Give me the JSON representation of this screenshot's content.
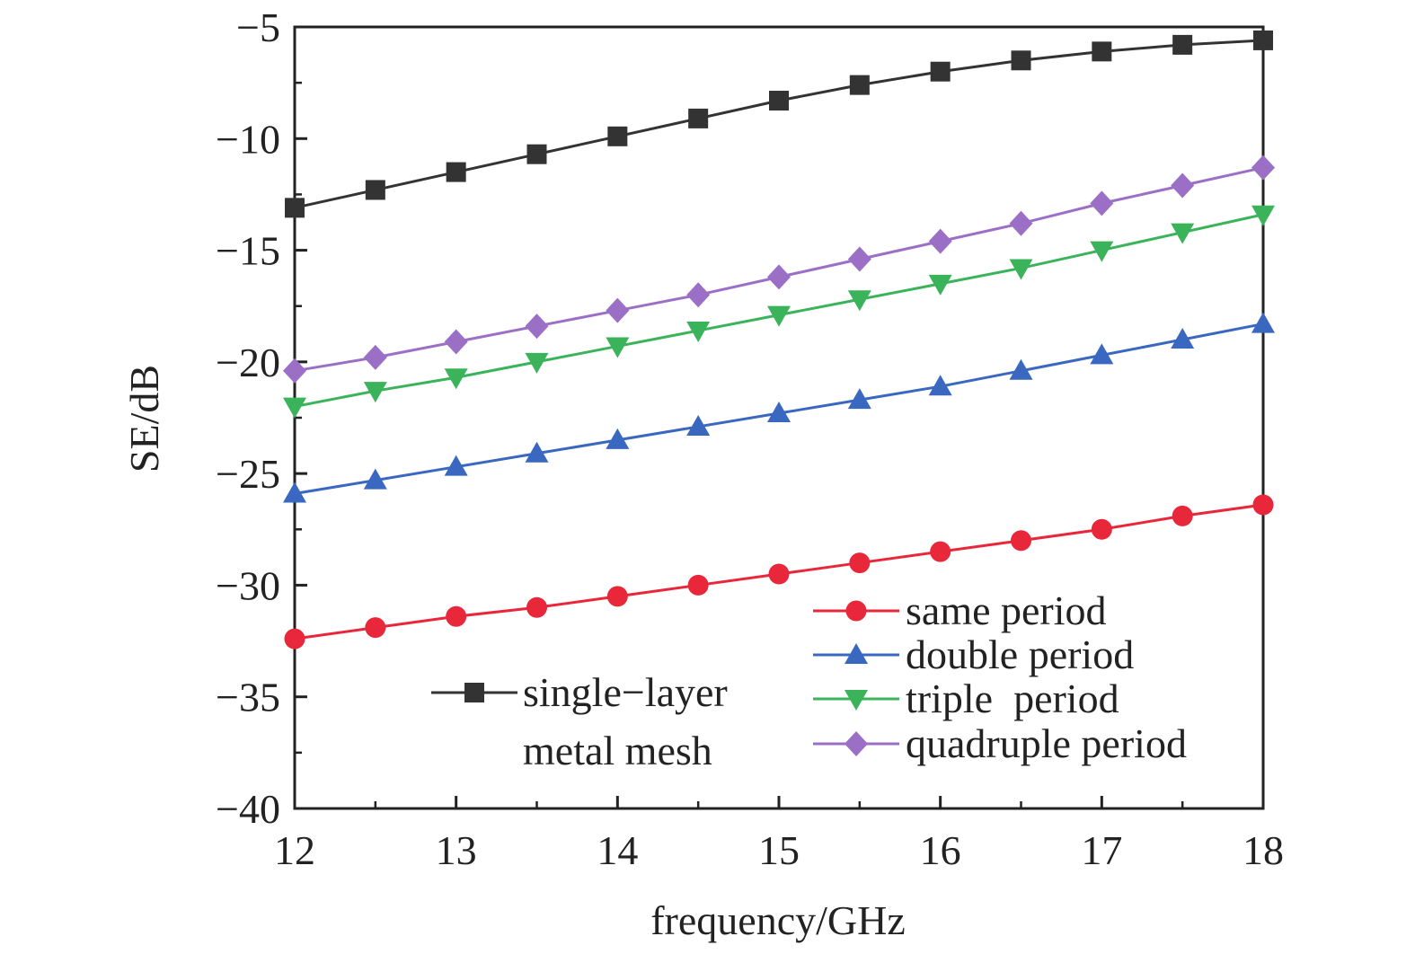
{
  "chart_data": {
    "type": "line",
    "xlabel": "frequency/GHz",
    "ylabel": "SE/dB",
    "xlim": [
      12,
      18
    ],
    "ylim": [
      -40,
      -5
    ],
    "x_ticks": [
      "12",
      "13",
      "14",
      "15",
      "16",
      "17",
      "18"
    ],
    "y_ticks": [
      "−5",
      "−10",
      "−15",
      "−20",
      "−25",
      "−30",
      "−35",
      "−40"
    ],
    "x_tick_values": [
      12,
      13,
      14,
      15,
      16,
      17,
      18
    ],
    "y_tick_values": [
      -5,
      -10,
      -15,
      -20,
      -25,
      -30,
      -35,
      -40
    ],
    "x": [
      12,
      12.5,
      13,
      13.5,
      14,
      14.5,
      15,
      15.5,
      16,
      16.5,
      17,
      17.5,
      18
    ],
    "series": [
      {
        "name": "single−layer metal mesh",
        "legend_lines": [
          "single−layer",
          "metal mesh"
        ],
        "color": "#333333",
        "marker": "square",
        "values": [
          -13.1,
          -12.3,
          -11.5,
          -10.7,
          -9.9,
          -9.1,
          -8.3,
          -7.6,
          -7.0,
          -6.5,
          -6.1,
          -5.8,
          -5.6
        ]
      },
      {
        "name": "same period",
        "color": "#e8273a",
        "marker": "circle",
        "values": [
          -32.4,
          -31.9,
          -31.4,
          -31.0,
          -30.5,
          -30.0,
          -29.5,
          -29.0,
          -28.5,
          -28.0,
          -27.5,
          -26.9,
          -26.4
        ]
      },
      {
        "name": "double period",
        "color": "#3a68c1",
        "marker": "triangle-up",
        "values": [
          -25.9,
          -25.3,
          -24.7,
          -24.1,
          -23.5,
          -22.9,
          -22.3,
          -21.7,
          -21.1,
          -20.4,
          -19.7,
          -19.0,
          -18.3
        ]
      },
      {
        "name": "triple  period",
        "color": "#3ab35a",
        "marker": "triangle-down",
        "values": [
          -22.0,
          -21.3,
          -20.7,
          -20.0,
          -19.3,
          -18.6,
          -17.9,
          -17.2,
          -16.5,
          -15.8,
          -15.0,
          -14.2,
          -13.4
        ]
      },
      {
        "name": "quadruple period",
        "color": "#9b6fc6",
        "marker": "diamond",
        "values": [
          -20.4,
          -19.8,
          -19.1,
          -18.4,
          -17.7,
          -17.0,
          -16.2,
          -15.4,
          -14.6,
          -13.8,
          -12.9,
          -12.1,
          -11.3
        ]
      }
    ]
  }
}
